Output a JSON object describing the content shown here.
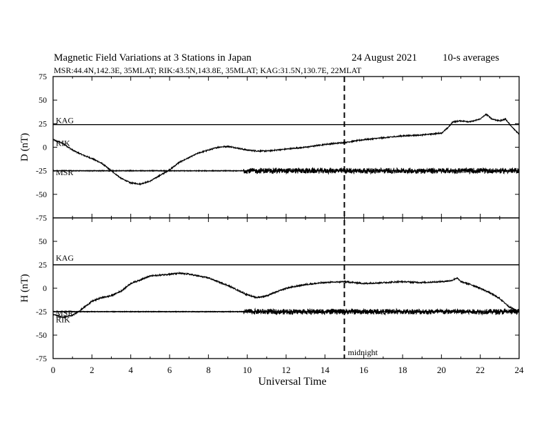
{
  "chart_data": {
    "type": "line",
    "title_left": "Magnetic Field Variations at 3 Stations in Japan",
    "title_date": "24  August  2021",
    "title_right": "10-s averages",
    "subtitle": "MSR:44.4N,142.3E, 35MLAT;  RIK:43.5N,143.8E, 35MLAT;  KAG:31.5N,130.7E, 22MLAT",
    "xlabel": "Universal Time",
    "xlim": [
      0,
      24
    ],
    "x_ticks": [
      "0",
      "2",
      "4",
      "6",
      "8",
      "10",
      "12",
      "14",
      "16",
      "18",
      "20",
      "22",
      "24"
    ],
    "marker": {
      "x": 15,
      "label": "midnight"
    },
    "panels": [
      {
        "ylabel": "D (nT)",
        "ylim": [
          -75,
          75
        ],
        "y_ticks": [
          "75",
          "50",
          "25",
          "0",
          "-25",
          "-50",
          "-75"
        ],
        "baselines": [
          {
            "name": "KAG",
            "value": 24
          },
          {
            "name": "MSR",
            "value": -25
          }
        ],
        "station_labels": [
          {
            "name": "KAG",
            "y": 24
          },
          {
            "name": "RIK",
            "y": 0
          },
          {
            "name": "MSR",
            "y": -31
          }
        ],
        "series": [
          {
            "name": "RIK",
            "noise": 0.6,
            "x": [
              0,
              0.5,
              1,
              1.5,
              2,
              2.5,
              3,
              3.5,
              4,
              4.5,
              5,
              5.5,
              6,
              6.5,
              7,
              7.5,
              8,
              8.5,
              9,
              9.5,
              10,
              10.5,
              11,
              11.5,
              12,
              13,
              14,
              15,
              16,
              17,
              18,
              19,
              20,
              20.3,
              20.6,
              21,
              21.5,
              22,
              22.3,
              22.6,
              23,
              23.3,
              23.6,
              24
            ],
            "y": [
              8,
              4,
              -3,
              -8,
              -12,
              -17,
              -25,
              -33,
              -38,
              -39,
              -36,
              -30,
              -24,
              -16,
              -11,
              -6,
              -3,
              0,
              1,
              -1,
              -3,
              -4,
              -4,
              -3,
              -2,
              0,
              3,
              5,
              8,
              10,
              12,
              13,
              15,
              20,
              27,
              28,
              27,
              30,
              35,
              30,
              28,
              30,
              22,
              14
            ]
          },
          {
            "name": "MSR",
            "noise": 0.4,
            "burst": {
              "from": 9.8,
              "to": 24,
              "amp": 2.8
            },
            "x": [
              0,
              24
            ],
            "y": [
              -25,
              -25
            ]
          }
        ]
      },
      {
        "ylabel": "H (nT)",
        "ylim": [
          -75,
          75
        ],
        "y_ticks": [
          "75",
          "50",
          "25",
          "0",
          "-25",
          "-50",
          "-75"
        ],
        "baselines": [
          {
            "name": "KAG",
            "value": 25
          },
          {
            "name": "MSR",
            "value": -25
          }
        ],
        "station_labels": [
          {
            "name": "KAG",
            "y": 28
          },
          {
            "name": "MSR",
            "y": -31
          },
          {
            "name": "RIK",
            "y": -38
          }
        ],
        "series": [
          {
            "name": "RIK",
            "noise": 0.7,
            "x": [
              0,
              0.5,
              1,
              1.5,
              2,
              2.5,
              3,
              3.5,
              4,
              5,
              6,
              6.5,
              7,
              7.5,
              8,
              8.5,
              9,
              9.5,
              10,
              10.5,
              11,
              11.5,
              12,
              13,
              14,
              15,
              16,
              17,
              18,
              19,
              20,
              20.5,
              20.8,
              21,
              21.5,
              22,
              22.5,
              23,
              23.5,
              24
            ],
            "y": [
              -28,
              -31,
              -29,
              -22,
              -14,
              -10,
              -8,
              -3,
              5,
              13,
              15,
              16,
              15,
              13,
              11,
              7,
              3,
              -2,
              -7,
              -10,
              -8,
              -4,
              0,
              4,
              6,
              7,
              5,
              6,
              7,
              6,
              7,
              8,
              11,
              7,
              4,
              0,
              -5,
              -11,
              -20,
              -25
            ]
          },
          {
            "name": "MSR",
            "noise": 0.4,
            "burst": {
              "from": 9.8,
              "to": 24,
              "amp": 2.8
            },
            "x": [
              0,
              24
            ],
            "y": [
              -25,
              -25
            ]
          }
        ]
      }
    ]
  }
}
